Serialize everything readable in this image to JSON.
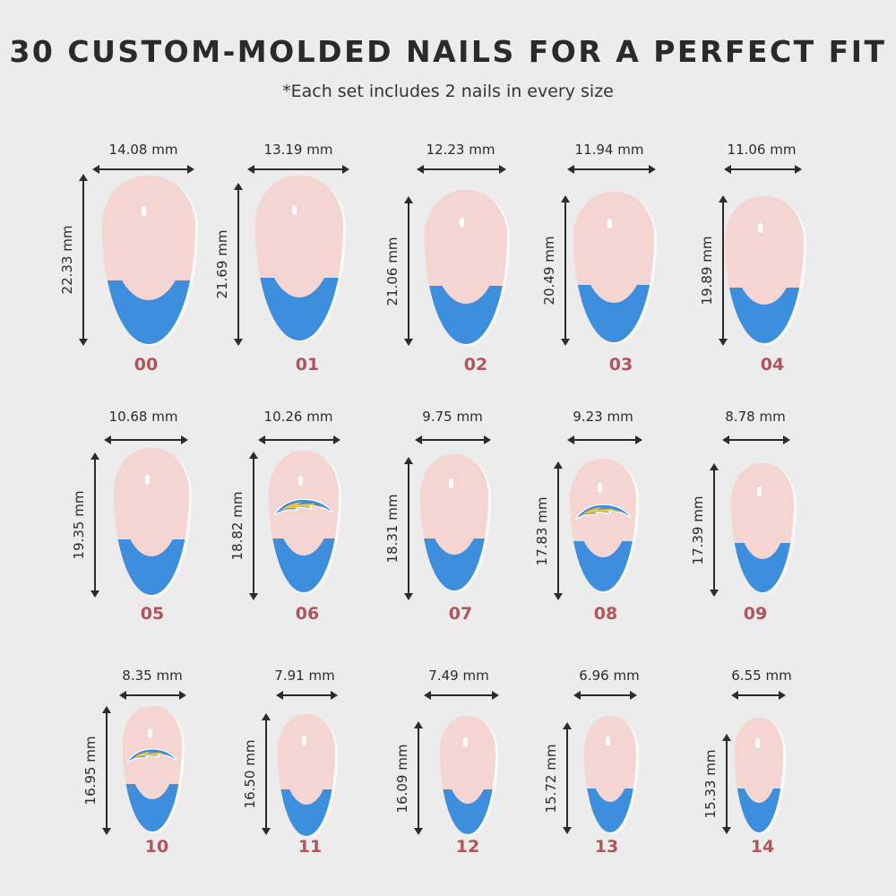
{
  "header": {
    "title": "30 CUSTOM-MOLDED NAILS FOR A PERFECT FIT",
    "subtitle": "*Each set includes 2 nails in every size"
  },
  "colors": {
    "background": "#ececec",
    "nail_base": "#f4d5d2",
    "french_tip": "#3d8fde",
    "size_number": "#b0555c",
    "logo_gold": "#f2c230",
    "logo_blue": "#3d8fde"
  },
  "nails": [
    {
      "size": "00",
      "width": "14.08 mm",
      "length": "22.33 mm",
      "logo": false
    },
    {
      "size": "01",
      "width": "13.19 mm",
      "length": "21.69 mm",
      "logo": false
    },
    {
      "size": "02",
      "width": "12.23 mm",
      "length": "21.06 mm",
      "logo": false
    },
    {
      "size": "03",
      "width": "11.94 mm",
      "length": "20.49 mm",
      "logo": false
    },
    {
      "size": "04",
      "width": "11.06 mm",
      "length": "19.89 mm",
      "logo": false
    },
    {
      "size": "05",
      "width": "10.68 mm",
      "length": "19.35 mm",
      "logo": false
    },
    {
      "size": "06",
      "width": "10.26 mm",
      "length": "18.82 mm",
      "logo": true
    },
    {
      "size": "07",
      "width": "9.75 mm",
      "length": "18.31 mm",
      "logo": false
    },
    {
      "size": "08",
      "width": "9.23 mm",
      "length": "17.83 mm",
      "logo": true
    },
    {
      "size": "09",
      "width": "8.78 mm",
      "length": "17.39 mm",
      "logo": false
    },
    {
      "size": "10",
      "width": "8.35 mm",
      "length": "16.95 mm",
      "logo": true
    },
    {
      "size": "11",
      "width": "7.91 mm",
      "length": "16.50 mm",
      "logo": false
    },
    {
      "size": "12",
      "width": "7.49 mm",
      "length": "16.09 mm",
      "logo": false
    },
    {
      "size": "13",
      "width": "6.96 mm",
      "length": "15.72 mm",
      "logo": false
    },
    {
      "size": "14",
      "width": "6.55 mm",
      "length": "15.33 mm",
      "logo": false
    }
  ]
}
